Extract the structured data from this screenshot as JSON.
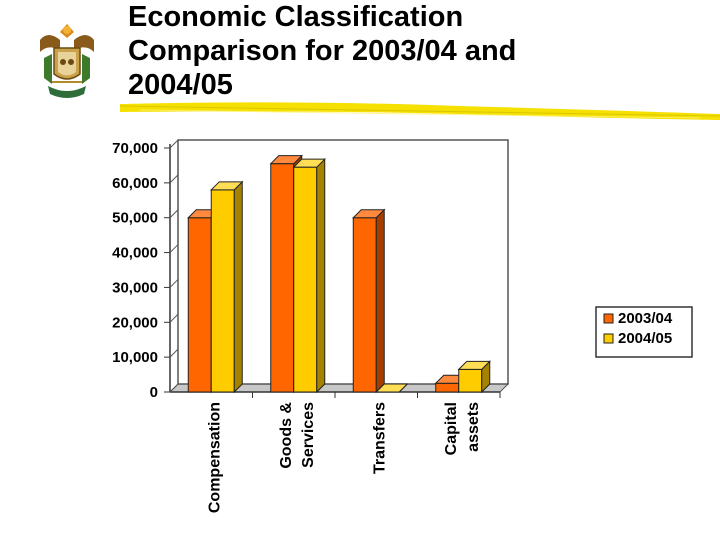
{
  "slide": {
    "title_lines": [
      "Economic Classification",
      "Comparison for 2003/04 and",
      "2004/05"
    ],
    "emblem_icon": "coat-of-arms-icon"
  },
  "colors": {
    "series_2003": "#ff6600",
    "series_2003_side": "#a33e00",
    "series_2003_top": "#ff8a3d",
    "series_2004": "#ffcc00",
    "series_2004_side": "#a38300",
    "series_2004_top": "#ffdd55",
    "rule": "#f5e000"
  },
  "chart_data": {
    "type": "bar",
    "title": "",
    "categories": [
      [
        "Compensation"
      ],
      [
        "Goods &",
        "Services"
      ],
      [
        "Transfers"
      ],
      [
        "Capital",
        "assets"
      ]
    ],
    "series": [
      {
        "name": "2003/04",
        "values": [
          50000,
          65500,
          50000,
          2500
        ]
      },
      {
        "name": "2004/05",
        "values": [
          58000,
          64500,
          0,
          6500
        ]
      }
    ],
    "ylim": [
      0,
      70000
    ],
    "yticks": [
      "0",
      "10,000",
      "20,000",
      "30,000",
      "40,000",
      "50,000",
      "60,000",
      "70,000"
    ],
    "ytick_values": [
      0,
      10000,
      20000,
      30000,
      40000,
      50000,
      60000,
      70000
    ],
    "grid": false,
    "legend_position": "right"
  }
}
